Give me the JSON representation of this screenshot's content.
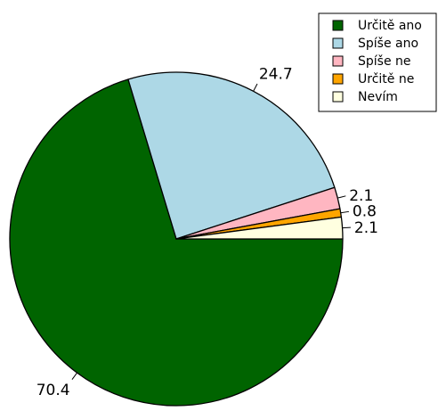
{
  "chart_data": {
    "type": "pie",
    "title": "",
    "start_angle_deg": 0,
    "direction": "clockwise",
    "legend_position": "top-right",
    "slices": [
      {
        "label": "Určitě ano",
        "value": 70.4,
        "value_label": "70.4",
        "color": "#006400"
      },
      {
        "label": "Spíše ano",
        "value": 24.7,
        "value_label": "24.7",
        "color": "#ADD8E6"
      },
      {
        "label": "Spíše ne",
        "value": 2.1,
        "value_label": "2.1",
        "color": "#FFB6C1"
      },
      {
        "label": "Určitě ne",
        "value": 0.8,
        "value_label": "0.8",
        "color": "#FFA500"
      },
      {
        "label": "Nevím",
        "value": 2.1,
        "value_label": "2.1",
        "color": "#FFFFE0"
      }
    ]
  }
}
